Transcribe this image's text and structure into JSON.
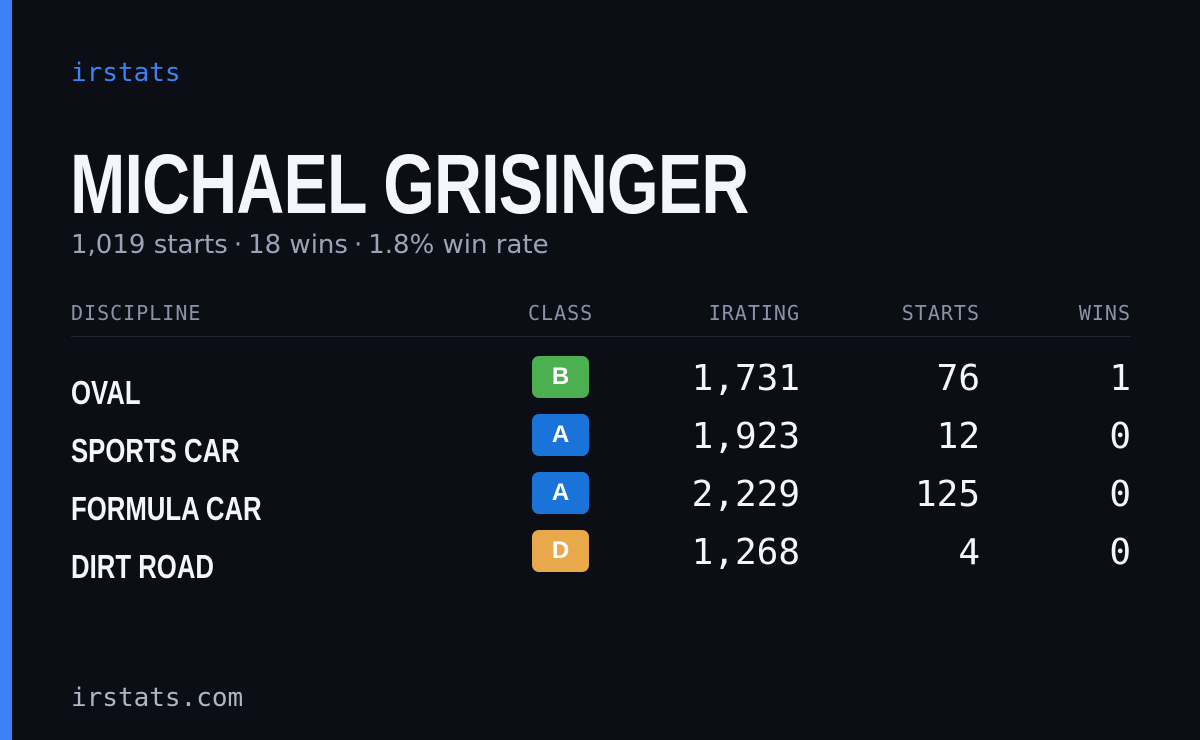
{
  "brand": "irstats",
  "driver": {
    "name": "MICHAEL GRISINGER",
    "starts_text": "1,019 starts",
    "wins_text": "18 wins",
    "win_rate_text": "1.8% win rate",
    "separator": "·"
  },
  "table": {
    "headers": {
      "discipline": "DISCIPLINE",
      "class": "CLASS",
      "irating": "IRATING",
      "starts": "STARTS",
      "wins": "WINS"
    },
    "rows": [
      {
        "discipline": "OVAL",
        "class": "B",
        "class_color": "#4caf50",
        "irating": "1,731",
        "starts": "76",
        "wins": "1"
      },
      {
        "discipline": "SPORTS CAR",
        "class": "A",
        "class_color": "#1a73d9",
        "irating": "1,923",
        "starts": "12",
        "wins": "0"
      },
      {
        "discipline": "FORMULA CAR",
        "class": "A",
        "class_color": "#1a73d9",
        "irating": "2,229",
        "starts": "125",
        "wins": "0"
      },
      {
        "discipline": "DIRT ROAD",
        "class": "D",
        "class_color": "#e9a94b",
        "irating": "1,268",
        "starts": "4",
        "wins": "0"
      }
    ]
  },
  "footer": {
    "url": "irstats.com"
  },
  "colors": {
    "background": "#0b0e14",
    "accent": "#3b82f6",
    "class_A": "#1a73d9",
    "class_B": "#4caf50",
    "class_D": "#e9a94b"
  }
}
